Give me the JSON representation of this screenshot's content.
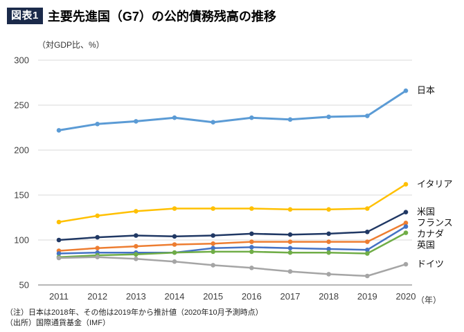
{
  "header": {
    "badge": "図表1",
    "title": "主要先進国（G7）の公的債務残高の推移",
    "badge_bg": "#1B2A4A"
  },
  "axis_unit_label": "（対GDP比、%）",
  "notes": {
    "line1": "（注）日本は2018年、その他は2019年から推計値（2020年10月予測時点）",
    "line2": "（出所）国際通貨基金（IMF）"
  },
  "chart_data": {
    "type": "line",
    "title": "主要先進国（G7）の公的債務残高の推移",
    "ylabel": "（対GDP比、%）",
    "x_suffix_label": "（年）",
    "x": [
      2011,
      2012,
      2013,
      2014,
      2015,
      2016,
      2017,
      2018,
      2019,
      2020
    ],
    "ylim": [
      50,
      300
    ],
    "ytick_step": 50,
    "grid": "horizontal",
    "legend_position": "right-end-labels",
    "gridline_color": "#D9D9D9",
    "axis_line_color": "#8C8C8C",
    "tick_label_color": "#404040",
    "series": [
      {
        "name": "日本",
        "color": "#5B9BD5",
        "line_width": 3,
        "values": [
          222,
          229,
          232,
          236,
          231,
          236,
          234,
          237,
          238,
          266
        ]
      },
      {
        "name": "イタリア",
        "color": "#FFC000",
        "line_width": 2.5,
        "values": [
          120,
          127,
          132,
          135,
          135,
          135,
          134,
          134,
          135,
          162
        ]
      },
      {
        "name": "米国",
        "color": "#203864",
        "line_width": 2.5,
        "values": [
          100,
          103,
          105,
          104,
          105,
          107,
          106,
          107,
          109,
          131
        ]
      },
      {
        "name": "フランス",
        "color": "#ED7D31",
        "line_width": 2.5,
        "values": [
          88,
          91,
          93,
          95,
          96,
          98,
          98,
          98,
          98,
          119
        ]
      },
      {
        "name": "カナダ",
        "color": "#4472C4",
        "line_width": 2.5,
        "values": [
          85,
          86,
          86,
          86,
          91,
          92,
          91,
          90,
          89,
          115
        ]
      },
      {
        "name": "英国",
        "color": "#70AD47",
        "line_width": 2.5,
        "values": [
          81,
          83,
          84,
          86,
          87,
          87,
          86,
          86,
          85,
          108
        ]
      },
      {
        "name": "ドイツ",
        "color": "#A5A5A5",
        "line_width": 2.5,
        "values": [
          80,
          81,
          79,
          76,
          72,
          69,
          65,
          62,
          60,
          73
        ]
      }
    ]
  }
}
